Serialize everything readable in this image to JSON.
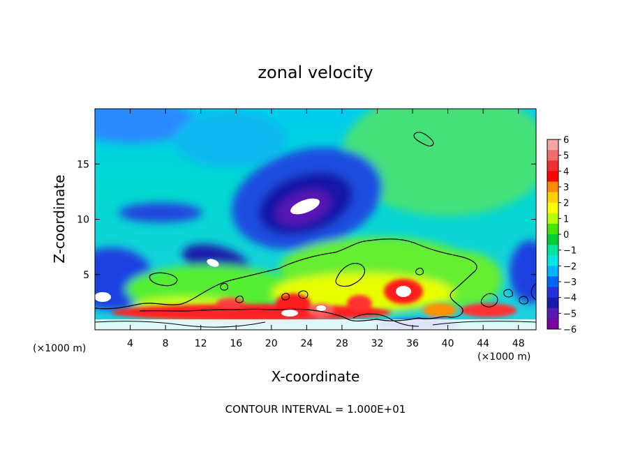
{
  "chart_data": {
    "type": "heatmap",
    "title": "zonal velocity",
    "xlabel": "X-coordinate",
    "ylabel": "Z-coordinate",
    "x_unit_label": "(×1000 m)",
    "xlim": [
      0,
      50
    ],
    "ylim": [
      0,
      20
    ],
    "x_ticks": [
      4,
      8,
      12,
      16,
      20,
      24,
      28,
      32,
      36,
      40,
      44,
      48
    ],
    "y_ticks": [
      5,
      10,
      15
    ],
    "colorbar": {
      "ticks": [
        "6",
        "5",
        "4",
        "3",
        "2",
        "1",
        "0",
        "−1",
        "−2",
        "−3",
        "−4",
        "−5",
        "−6"
      ],
      "range": [
        -6,
        6
      ],
      "colors": [
        "#f6a6a6",
        "#f56c6c",
        "#f03030",
        "#ff0000",
        "#ff8c00",
        "#ffd000",
        "#ffff00",
        "#b8ff00",
        "#44e600",
        "#00cc33",
        "#00e6a0",
        "#00e6e6",
        "#00b4ff",
        "#0066ff",
        "#2233dd",
        "#1a1aaa",
        "#5a18b4",
        "#7a00a0"
      ]
    },
    "contour_interval_text": "CONTOUR INTERVAL = 1.000E+01",
    "features": [
      {
        "name": "upper-jet-core",
        "x": 24,
        "z": 11.2,
        "value": -6
      },
      {
        "name": "low-level-jet-core",
        "x": 14,
        "z": 6.0,
        "value": -6
      },
      {
        "name": "left-lower-core",
        "x": 1,
        "z": 2.8,
        "value": -6
      },
      {
        "name": "positive-region-center",
        "x": 34,
        "z": 3.5,
        "value": 5
      }
    ]
  }
}
